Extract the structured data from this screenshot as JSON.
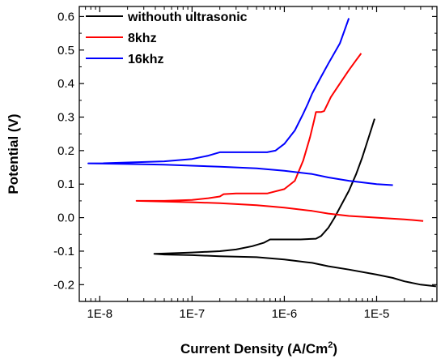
{
  "chart_data": {
    "type": "line",
    "xlabel": "Current Density (A/Cm",
    "xlabel_sup": "2",
    "xlabel_close": ")",
    "ylabel": "Potential (V)",
    "xscale": "log",
    "xlim": [
      6e-09,
      4.5e-05
    ],
    "ylim": [
      -0.25,
      0.63
    ],
    "xticks": [
      1e-08,
      1e-07,
      1e-06,
      1e-05
    ],
    "xtick_labels": [
      "1E-8",
      "1E-7",
      "1E-6",
      "1E-5"
    ],
    "yticks": [
      -0.2,
      -0.1,
      0.0,
      0.1,
      0.2,
      0.3,
      0.4,
      0.5,
      0.6
    ],
    "ytick_labels": [
      "-0.2",
      "-0.1",
      "0.0",
      "0.1",
      "0.2",
      "0.3",
      "0.4",
      "0.5",
      "0.6"
    ],
    "legend_position": "top-left",
    "grid": false,
    "series": [
      {
        "name": "withouth ultrasonic",
        "color": "#000000",
        "x": [
          4.4e-05,
          3e-05,
          2e-05,
          1.5e-05,
          1e-05,
          5e-06,
          3e-06,
          2e-06,
          1e-06,
          5e-07,
          2e-07,
          1e-07,
          5e-08,
          3.9e-08,
          5e-08,
          1e-07,
          2e-07,
          3e-07,
          4.5e-07,
          6e-07,
          7e-07,
          1e-06,
          1.5e-06,
          2.2e-06,
          2.5e-06,
          3e-06,
          3.5e-06,
          4e-06,
          5e-06,
          6e-06,
          7e-06,
          8e-06,
          9.5e-06
        ],
        "y": [
          -0.205,
          -0.2,
          -0.19,
          -0.18,
          -0.17,
          -0.155,
          -0.145,
          -0.135,
          -0.125,
          -0.118,
          -0.115,
          -0.112,
          -0.11,
          -0.108,
          -0.107,
          -0.104,
          -0.1,
          -0.095,
          -0.085,
          -0.075,
          -0.065,
          -0.065,
          -0.065,
          -0.063,
          -0.055,
          -0.03,
          0.0,
          0.03,
          0.08,
          0.13,
          0.18,
          0.23,
          0.295
        ]
      },
      {
        "name": "8khz",
        "color": "#ff0000",
        "x": [
          3.2e-05,
          2e-05,
          1e-05,
          5e-06,
          3e-06,
          2e-06,
          1e-06,
          5e-07,
          2e-07,
          1e-07,
          5e-08,
          2.5e-08,
          5e-08,
          1e-07,
          1.5e-07,
          2e-07,
          2.2e-07,
          3e-07,
          5e-07,
          6.5e-07,
          1e-06,
          1.3e-06,
          1.6e-06,
          1.9e-06,
          2.1e-06,
          2.2e-06,
          2.5e-06,
          2.7e-06,
          3.2e-06,
          4e-06,
          5e-06,
          6e-06,
          6.8e-06
        ],
        "y": [
          -0.01,
          -0.005,
          0.0,
          0.005,
          0.012,
          0.02,
          0.03,
          0.037,
          0.043,
          0.046,
          0.048,
          0.05,
          0.05,
          0.053,
          0.058,
          0.063,
          0.07,
          0.072,
          0.072,
          0.072,
          0.085,
          0.11,
          0.17,
          0.24,
          0.29,
          0.315,
          0.315,
          0.318,
          0.36,
          0.4,
          0.44,
          0.47,
          0.49
        ]
      },
      {
        "name": "16khz",
        "color": "#0000ff",
        "x": [
          1.5e-05,
          1e-05,
          5e-06,
          3e-06,
          2e-06,
          1e-06,
          5e-07,
          2e-07,
          1e-07,
          5e-08,
          2e-08,
          7.5e-09,
          1e-08,
          5e-08,
          1e-07,
          1.5e-07,
          2e-07,
          3e-07,
          6.5e-07,
          8e-07,
          1e-06,
          1.3e-06,
          1.6e-06,
          1.8e-06,
          2e-06,
          2.5e-06,
          3e-06,
          4e-06,
          5e-06
        ],
        "y": [
          0.097,
          0.1,
          0.11,
          0.12,
          0.13,
          0.14,
          0.147,
          0.152,
          0.155,
          0.158,
          0.16,
          0.162,
          0.162,
          0.168,
          0.175,
          0.185,
          0.195,
          0.195,
          0.195,
          0.2,
          0.22,
          0.26,
          0.31,
          0.34,
          0.37,
          0.42,
          0.46,
          0.52,
          0.595
        ]
      }
    ]
  }
}
